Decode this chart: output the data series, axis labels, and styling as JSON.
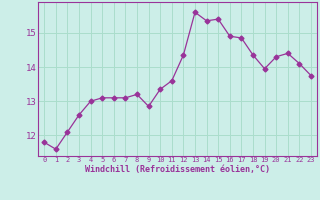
{
  "x": [
    0,
    1,
    2,
    3,
    4,
    5,
    6,
    7,
    8,
    9,
    10,
    11,
    12,
    13,
    14,
    15,
    16,
    17,
    18,
    19,
    20,
    21,
    22,
    23
  ],
  "y": [
    11.8,
    11.6,
    12.1,
    12.6,
    13.0,
    13.1,
    13.1,
    13.1,
    13.2,
    12.85,
    13.35,
    13.6,
    14.35,
    15.6,
    15.35,
    15.4,
    14.9,
    14.85,
    14.35,
    13.95,
    14.3,
    14.4,
    14.1,
    13.75
  ],
  "line_color": "#993399",
  "marker": "D",
  "markersize": 2.5,
  "bg_color": "#cceee8",
  "grid_color": "#aaddcc",
  "xlabel": "Windchill (Refroidissement éolien,°C)",
  "xlabel_color": "#993399",
  "tick_color": "#993399",
  "yticks": [
    12,
    13,
    14,
    15
  ],
  "xticks": [
    0,
    1,
    2,
    3,
    4,
    5,
    6,
    7,
    8,
    9,
    10,
    11,
    12,
    13,
    14,
    15,
    16,
    17,
    18,
    19,
    20,
    21,
    22,
    23
  ],
  "ylim": [
    11.4,
    15.9
  ],
  "xlim": [
    -0.5,
    23.5
  ]
}
